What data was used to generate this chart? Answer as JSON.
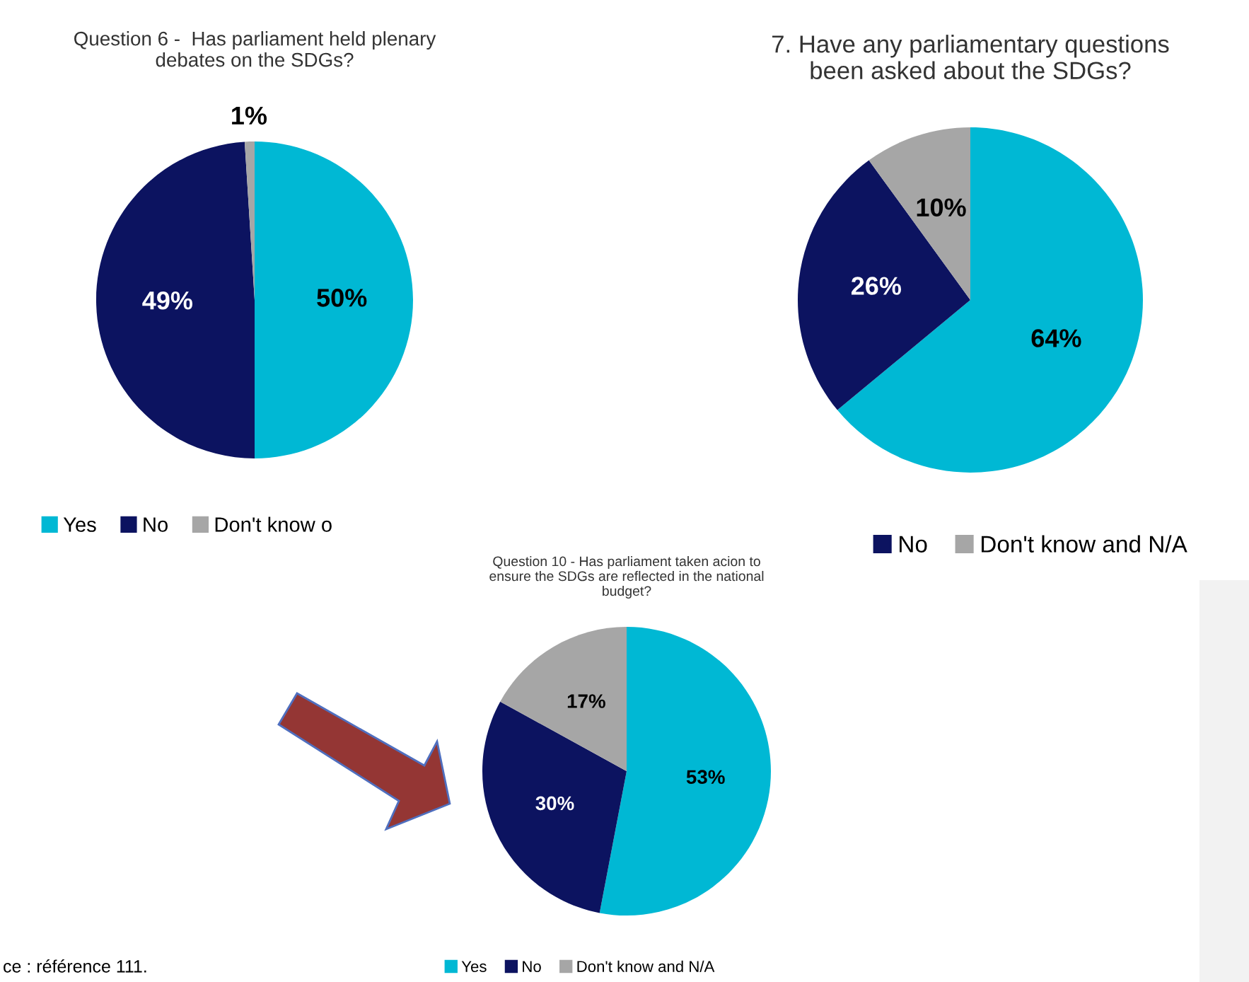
{
  "chart_data": [
    {
      "type": "pie",
      "title": "Question 6 -  Has parliament held plenary\ndebates on the SDGs?",
      "categories": [
        "Yes",
        "No",
        "Don't know o"
      ],
      "values": [
        50,
        49,
        1
      ],
      "colors": [
        "#00b8d4",
        "#0c1360",
        "#a6a6a6"
      ],
      "value_labels": [
        "50%",
        "49%",
        "1%"
      ],
      "legend": "bottom"
    },
    {
      "type": "pie",
      "title": "7. Have any parliamentary questions\nbeen asked about the SDGs?",
      "categories": [
        null,
        "No",
        "Don't know and N/A"
      ],
      "values": [
        64,
        26,
        10
      ],
      "colors": [
        "#00b8d4",
        "#0c1360",
        "#a6a6a6"
      ],
      "value_labels": [
        "64%",
        "26%",
        "10%"
      ],
      "legend": "bottom"
    },
    {
      "type": "pie",
      "title": "Question 10 - Has parliament taken acion to\nensure the SDGs are reflected in the national\nbudget?",
      "categories": [
        "Yes",
        "No",
        "Don't know and N/A"
      ],
      "values": [
        53,
        30,
        17
      ],
      "colors": [
        "#00b8d4",
        "#0c1360",
        "#a6a6a6"
      ],
      "value_labels": [
        "53%",
        "30%",
        "17%"
      ],
      "legend": "bottom",
      "annotations": [
        "ce : référence 111."
      ]
    }
  ]
}
